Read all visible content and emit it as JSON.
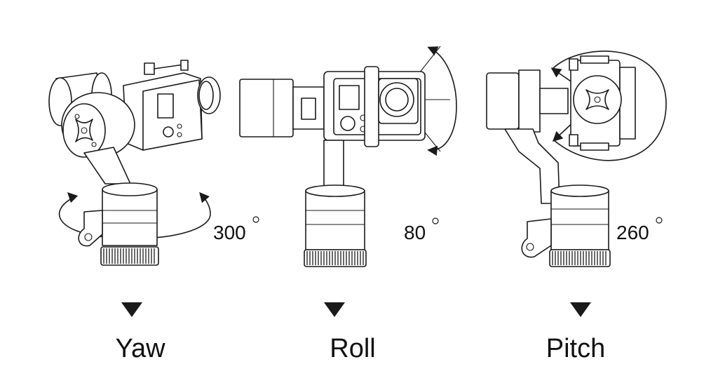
{
  "panels": [
    {
      "id": "yaw",
      "angle": "300",
      "label": "Yaw"
    },
    {
      "id": "roll",
      "angle": "80",
      "label": "Roll"
    },
    {
      "id": "pitch",
      "angle": "260",
      "label": "Pitch"
    }
  ]
}
